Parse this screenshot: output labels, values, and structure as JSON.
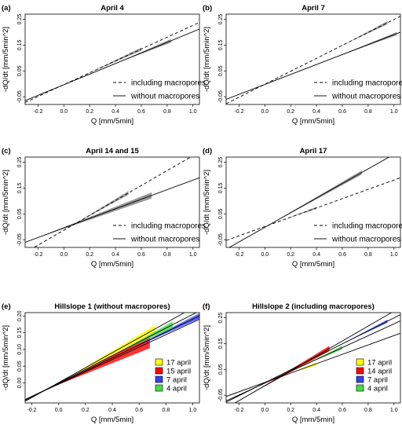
{
  "chart_data": [
    {
      "type": "line",
      "panel_label": "(a)",
      "title": "April 4",
      "xlabel": "Q [mm/5min]",
      "ylabel": "-dQ/dt [mm/5min^2]",
      "xlim": [
        -0.3,
        1.05
      ],
      "ylim": [
        -0.08,
        0.27
      ],
      "xticks": [
        "-0.2",
        "0.0",
        "0.2",
        "0.4",
        "0.6",
        "0.8",
        "1.0"
      ],
      "yticks": [
        "-0.05",
        "0.05",
        "0.15",
        "0.25"
      ],
      "legend": "bottom-right",
      "series": [
        {
          "name": "including macropores",
          "style": "dashed",
          "x": [
            -0.3,
            1.05
          ],
          "y": [
            -0.072,
            0.238
          ],
          "band": {
            "x": [
              0.15,
              0.6
            ],
            "width": 0.006
          }
        },
        {
          "name": "without macropores",
          "style": "solid",
          "x": [
            -0.3,
            1.05
          ],
          "y": [
            -0.065,
            0.212
          ],
          "band": {
            "x": [
              0.4,
              0.83
            ],
            "width": 0.007
          }
        }
      ]
    },
    {
      "type": "line",
      "panel_label": "(b)",
      "title": "April 7",
      "xlabel": "Q [mm/5min]",
      "ylabel": "-dQ/dt [mm/5min^2]",
      "xlim": [
        -0.3,
        1.05
      ],
      "ylim": [
        -0.08,
        0.27
      ],
      "xticks": [
        "-0.2",
        "0.0",
        "0.2",
        "0.4",
        "0.6",
        "0.8",
        "1.0"
      ],
      "yticks": [
        "-0.05",
        "0.05",
        "0.15",
        "0.25"
      ],
      "legend": "bottom-right",
      "series": [
        {
          "name": "including macropores",
          "style": "dashed",
          "x": [
            -0.3,
            1.05
          ],
          "y": [
            -0.077,
            0.262
          ],
          "band": {
            "x": [
              0.6,
              0.95
            ],
            "width": 0.006
          }
        },
        {
          "name": "without macropores",
          "style": "solid",
          "x": [
            -0.3,
            1.05
          ],
          "y": [
            -0.06,
            0.2
          ],
          "band": {
            "x": [
              0.55,
              1.02
            ],
            "width": 0.006
          }
        }
      ]
    },
    {
      "type": "line",
      "panel_label": "(c)",
      "title": "April 14 and 15",
      "xlabel": "Q [mm/5min]",
      "ylabel": "-dQ/dt [mm/5min^2]",
      "xlim": [
        -0.3,
        1.05
      ],
      "ylim": [
        -0.08,
        0.27
      ],
      "xticks": [
        "-0.2",
        "0.0",
        "0.2",
        "0.4",
        "0.6",
        "0.8",
        "1.0"
      ],
      "yticks": [
        "-0.05",
        "0.05",
        "0.15",
        "0.25"
      ],
      "legend": "bottom-right",
      "series": [
        {
          "name": "including macropores",
          "style": "dashed",
          "x": [
            -0.3,
            1.05
          ],
          "y": [
            -0.1,
            0.29
          ],
          "band": {
            "x": [
              0.05,
              0.5
            ],
            "width": 0.007
          }
        },
        {
          "name": "without macropores",
          "style": "solid",
          "x": [
            -0.3,
            1.05
          ],
          "y": [
            -0.06,
            0.19
          ],
          "band": {
            "x": [
              -0.22,
              0.68
            ],
            "width": 0.012
          }
        }
      ]
    },
    {
      "type": "line",
      "panel_label": "(d)",
      "title": "April 17",
      "xlabel": "Q [mm/5min]",
      "ylabel": "-dQ/dt [mm/5min^2]",
      "xlim": [
        -0.3,
        1.05
      ],
      "ylim": [
        -0.08,
        0.27
      ],
      "xticks": [
        "-0.2",
        "0.0",
        "0.2",
        "0.4",
        "0.6",
        "0.8",
        "1.0"
      ],
      "yticks": [
        "-0.05",
        "0.05",
        "0.15",
        "0.25"
      ],
      "legend": "bottom-right",
      "series": [
        {
          "name": "including macropores",
          "style": "dashed",
          "x": [
            -0.3,
            1.05
          ],
          "y": [
            -0.053,
            0.19
          ],
          "band": {
            "x": [
              0.15,
              0.4
            ],
            "width": 0.004
          }
        },
        {
          "name": "without macropores",
          "style": "solid",
          "x": [
            -0.3,
            1.05
          ],
          "y": [
            -0.087,
            0.295
          ],
          "band": {
            "x": [
              0.0,
              0.75
            ],
            "width": 0.008
          }
        }
      ]
    },
    {
      "type": "line",
      "panel_label": "(e)",
      "title": "Hillslope 1 (without macropores)",
      "xlabel": "Q [mm/5min]",
      "ylabel": "-dQ/dt [mm/5min^2]",
      "xlim": [
        -0.25,
        1.05
      ],
      "ylim": [
        -0.06,
        0.21
      ],
      "xticks": [
        "-0.2",
        "0.0",
        "0.2",
        "0.4",
        "0.6",
        "0.8",
        "1.0"
      ],
      "yticks": [
        "0.00",
        "0.05",
        "0.10",
        "0.15",
        "0.20"
      ],
      "legend": "bottom-right",
      "series": [
        {
          "name": "17 april",
          "color": "#ffff00",
          "x": [
            -0.25,
            1.05
          ],
          "y": [
            -0.055,
            0.235
          ],
          "band": {
            "x": [
              0.05,
              0.72
            ],
            "width": 0.012
          }
        },
        {
          "name": "15 april",
          "color": "#ff0000",
          "x": [
            -0.25,
            1.05
          ],
          "y": [
            -0.05,
            0.19
          ],
          "band": {
            "x": [
              -0.05,
              0.68
            ],
            "width": 0.018
          }
        },
        {
          "name": "7 april",
          "color": "#3340ff",
          "x": [
            -0.25,
            1.05
          ],
          "y": [
            -0.05,
            0.2
          ],
          "band": {
            "x": [
              0.5,
              1.05
            ],
            "width": 0.008
          }
        },
        {
          "name": "4 april",
          "color": "#44dd44",
          "x": [
            -0.25,
            1.05
          ],
          "y": [
            -0.052,
            0.215
          ],
          "band": {
            "x": [
              0.45,
              0.85
            ],
            "width": 0.01
          }
        }
      ]
    },
    {
      "type": "line",
      "panel_label": "(f)",
      "title": "Hillslope 2 (including macropores)",
      "xlabel": "Q [mm/5min]",
      "ylabel": "-dQ/dt [mm/5min^2]",
      "xlim": [
        -0.3,
        1.05
      ],
      "ylim": [
        -0.08,
        0.27
      ],
      "xticks": [
        "-0.2",
        "0.0",
        "0.2",
        "0.4",
        "0.6",
        "0.8",
        "1.0"
      ],
      "yticks": [
        "-0.05",
        "0.05",
        "0.15",
        "0.25"
      ],
      "legend": "bottom-right",
      "series": [
        {
          "name": "17 april",
          "color": "#ffff00",
          "x": [
            -0.3,
            1.05
          ],
          "y": [
            -0.055,
            0.19
          ],
          "band": {
            "x": [
              0.2,
              0.4
            ],
            "width": 0.006
          }
        },
        {
          "name": "14 april",
          "color": "#ff0000",
          "x": [
            -0.3,
            1.05
          ],
          "y": [
            -0.1,
            0.29
          ],
          "band": {
            "x": [
              -0.12,
              0.5
            ],
            "width": 0.01
          }
        },
        {
          "name": "7 april",
          "color": "#3340ff",
          "x": [
            -0.3,
            1.05
          ],
          "y": [
            -0.077,
            0.262
          ],
          "band": {
            "x": [
              0.6,
              0.95
            ],
            "width": 0.006
          }
        },
        {
          "name": "4 april",
          "color": "#44dd44",
          "x": [
            -0.3,
            1.05
          ],
          "y": [
            -0.072,
            0.238
          ],
          "band": {
            "x": [
              0.3,
              0.6
            ],
            "width": 0.007
          }
        }
      ]
    }
  ]
}
